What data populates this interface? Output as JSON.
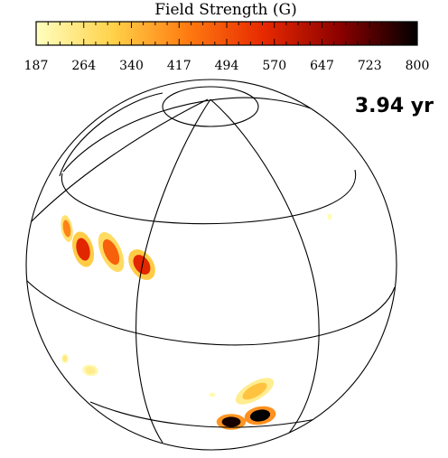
{
  "colorbar": {
    "title": "Field Strength (G)",
    "ticks": [
      "187",
      "264",
      "340",
      "417",
      "494",
      "570",
      "647",
      "723",
      "800"
    ],
    "min": 187,
    "max": 800,
    "gradient": [
      "#ffffc0",
      "#ffd24a",
      "#ff7a10",
      "#e62800",
      "#8a0000",
      "#000000"
    ]
  },
  "time_label": "3.94 yr",
  "spots": [
    {
      "name": "spot-upper-left-1",
      "strength": 420
    },
    {
      "name": "spot-upper-left-2",
      "strength": 560
    },
    {
      "name": "spot-upper-left-3",
      "strength": 470
    },
    {
      "name": "spot-upper-left-4",
      "strength": 560
    },
    {
      "name": "spot-lower-left-1",
      "strength": 250
    },
    {
      "name": "spot-lower-left-2",
      "strength": 240
    },
    {
      "name": "spot-lower-right-pale",
      "strength": 330
    },
    {
      "name": "spot-lower-right-dark-1",
      "strength": 780
    },
    {
      "name": "spot-lower-right-dark-2",
      "strength": 800
    },
    {
      "name": "spot-right-faint",
      "strength": 200
    },
    {
      "name": "spot-center-faint",
      "strength": 200
    }
  ]
}
